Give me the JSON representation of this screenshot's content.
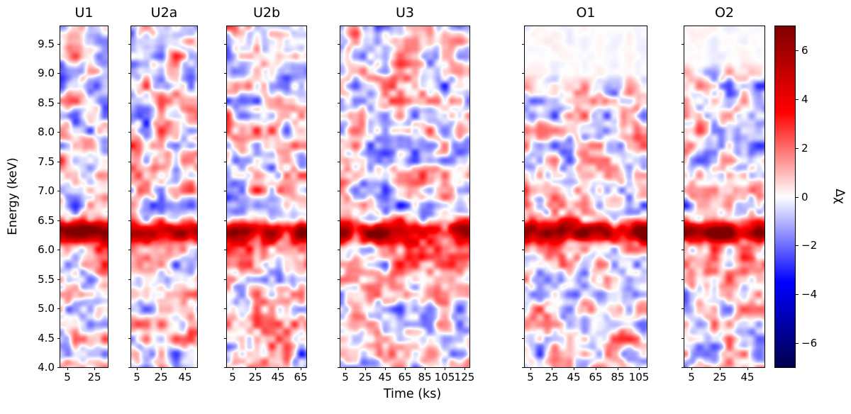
{
  "chart_data": {
    "type": "heatmap",
    "description": "Time-resolved residual (Δχ) maps in six panels; strong positive (red) residual band near 6.3 keV across all panels, blue/red noise elsewhere.",
    "x_axis": {
      "label": "Time (ks)"
    },
    "y_axis": {
      "label": "Energy (keV)",
      "range_keV": [
        4.0,
        9.8
      ],
      "tick_labels": [
        "9.5",
        "9.0",
        "8.5",
        "8.0",
        "7.5",
        "7.0",
        "6.5",
        "6.0",
        "5.5",
        "5.0",
        "4.5",
        "4.0"
      ]
    },
    "colorbar": {
      "label": "Δχ",
      "vmin": -7,
      "vmax": 7,
      "ticks": [
        "6",
        "4",
        "2",
        "0",
        "−2",
        "−4",
        "−6"
      ],
      "colormap": "seismic (dark blue → blue → white → red → dark red)",
      "colormap_stops": [
        {
          "t": 0.0,
          "color": "#00004d"
        },
        {
          "t": 0.25,
          "color": "#0000ff"
        },
        {
          "t": 0.5,
          "color": "#ffffff"
        },
        {
          "t": 0.75,
          "color": "#ff0000"
        },
        {
          "t": 1.0,
          "color": "#800000"
        }
      ]
    },
    "panels": [
      {
        "label": "U1",
        "time_ticks": [
          5,
          25
        ],
        "time_max_ks": 35
      },
      {
        "label": "U2a",
        "time_ticks": [
          5,
          25,
          45
        ],
        "time_max_ks": 55
      },
      {
        "label": "U2b",
        "time_ticks": [
          5,
          25,
          45,
          65
        ],
        "time_max_ks": 70
      },
      {
        "label": "U3",
        "time_ticks": [
          5,
          25,
          45,
          65,
          85,
          105,
          125
        ],
        "time_max_ks": 130
      },
      {
        "label": "O1",
        "time_ticks": [
          5,
          25,
          45,
          65,
          85,
          105
        ],
        "time_max_ks": 112,
        "quiet_above_keV": 9.0
      },
      {
        "label": "O2",
        "time_ticks": [
          5,
          25,
          45
        ],
        "time_max_ks": 57,
        "quiet_above_keV": 9.2
      }
    ],
    "features": {
      "emission_band_center_keV": 6.3,
      "emission_band_peak_delta_chi": 6.5,
      "background_noise_delta_chi_range": [
        -3,
        3
      ]
    }
  }
}
